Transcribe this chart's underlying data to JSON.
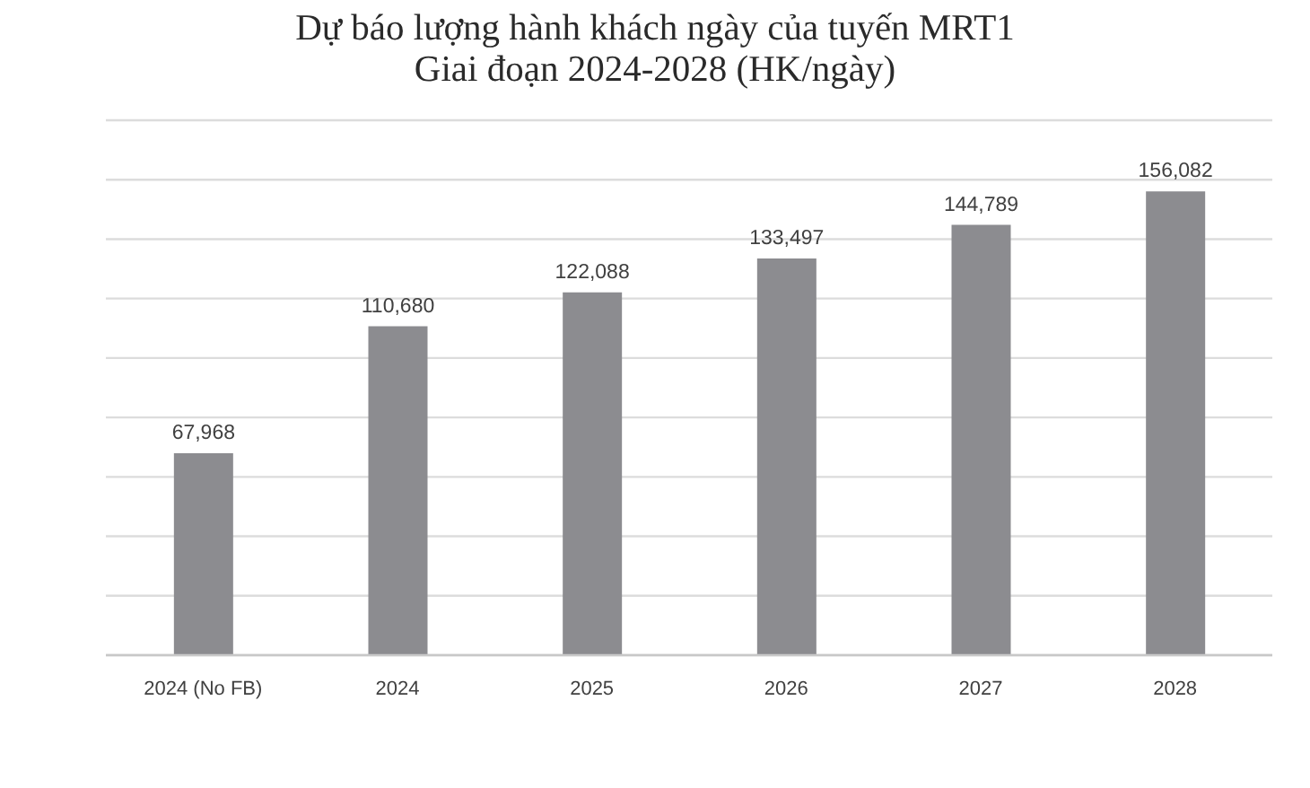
{
  "chart_data": {
    "type": "bar",
    "title": "Dự báo lượng hành khách ngày của tuyến MRT1\nGiai đoạn 2024-2028 (HK/ngày)",
    "categories": [
      "2024 (No FB)",
      "2024",
      "2025",
      "2026",
      "2027",
      "2028"
    ],
    "values": [
      67968,
      110680,
      122088,
      133497,
      144789,
      156082
    ],
    "color": "#8c8c90",
    "value_labels": [
      "67,968",
      "110,680",
      "122,088",
      "133,497",
      "144,789",
      "156,082"
    ],
    "grid": "y",
    "tick_labels": "x"
  }
}
